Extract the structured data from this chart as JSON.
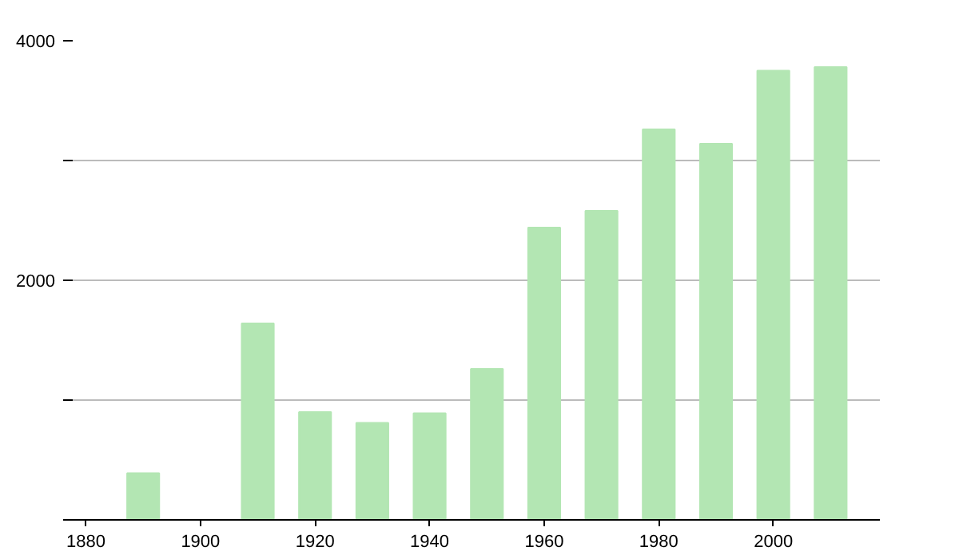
{
  "chart_data": {
    "type": "bar",
    "x": [
      1890,
      1910,
      1920,
      1930,
      1940,
      1950,
      1960,
      1970,
      1980,
      1990,
      2000,
      2010
    ],
    "values": [
      390,
      1640,
      900,
      810,
      890,
      1260,
      2440,
      2580,
      3260,
      3140,
      3750,
      3780
    ],
    "color": "#b3e6b3",
    "xlim": [
      1877.7,
      2018.6
    ],
    "xticks": [
      1880,
      1900,
      1920,
      1940,
      1960,
      1980,
      2000
    ],
    "ylim": [
      0,
      4000
    ],
    "yticks": [
      {
        "value": 0,
        "label": null
      },
      {
        "value": 1000,
        "label": null
      },
      2000,
      {
        "value": 3000,
        "label": null
      },
      4000
    ],
    "grid": "y"
  }
}
